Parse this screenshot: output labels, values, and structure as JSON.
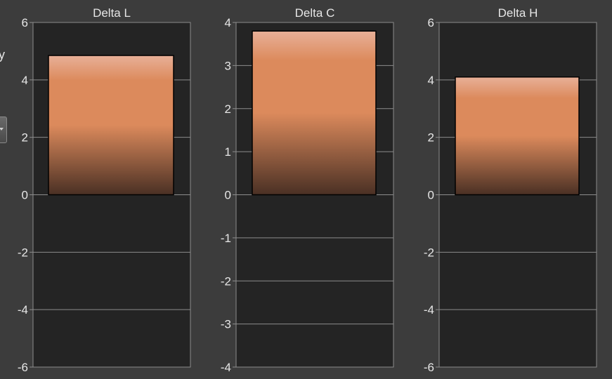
{
  "colors": {
    "background": "#3c3c3c",
    "plot_area": "#242424",
    "axis_text": "#e6e6e6",
    "grid": "#8c8c8c",
    "bar_top": "#e8b098",
    "bar_mid": "#dc8a5c",
    "bar_bottom": "#4a3024"
  },
  "left_panel": {
    "partial_label": "y"
  },
  "chart_data": [
    {
      "type": "bar",
      "title": "Delta L",
      "categories": [
        ""
      ],
      "values": [
        4.85
      ],
      "ylim": [
        -6,
        6
      ],
      "yticks": [
        6,
        4,
        2,
        0,
        -2,
        -4,
        -6
      ],
      "grid": true
    },
    {
      "type": "bar",
      "title": "Delta C",
      "categories": [
        ""
      ],
      "values": [
        3.8
      ],
      "ylim": [
        -4,
        4
      ],
      "yticks": [
        4,
        3,
        2,
        1,
        0,
        -1,
        -2,
        -3,
        -4
      ],
      "grid": true
    },
    {
      "type": "bar",
      "title": "Delta H",
      "categories": [
        ""
      ],
      "values": [
        4.1
      ],
      "ylim": [
        -6,
        6
      ],
      "yticks": [
        6,
        4,
        2,
        0,
        -2,
        -4,
        -6
      ],
      "grid": true
    }
  ]
}
